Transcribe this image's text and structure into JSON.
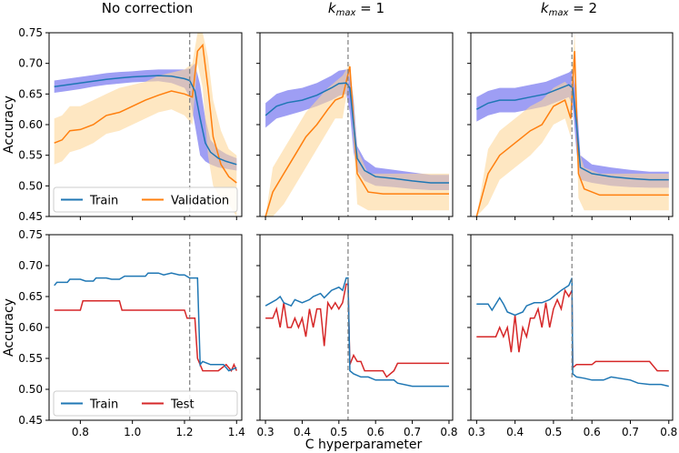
{
  "figure": {
    "xlabel": "C hyperparameter",
    "ylabel": "Accuracy"
  },
  "chart_data": [
    {
      "type": "line",
      "panel": "top-left",
      "title": "No correction",
      "ylabel": "Accuracy",
      "xlim": [
        0.68,
        1.42
      ],
      "ylim": [
        0.45,
        0.75
      ],
      "xticks": [
        "0.8",
        "1.0",
        "1.2",
        "1.4"
      ],
      "show_xticks": false,
      "yticks": [
        "0.45",
        "0.50",
        "0.55",
        "0.60",
        "0.65",
        "0.70",
        "0.75"
      ],
      "vline": 1.22,
      "legend": {
        "position": "lower-left",
        "entries": [
          "Train",
          "Validation"
        ]
      },
      "series": [
        {
          "name": "Train",
          "color": "#1f77b4",
          "band_color": "#7e7ef0",
          "x": [
            0.7,
            0.75,
            0.8,
            0.85,
            0.9,
            0.95,
            1.0,
            1.05,
            1.1,
            1.15,
            1.2,
            1.22,
            1.24,
            1.26,
            1.28,
            1.3,
            1.33,
            1.36,
            1.4
          ],
          "y": [
            0.662,
            0.665,
            0.668,
            0.671,
            0.674,
            0.676,
            0.678,
            0.679,
            0.68,
            0.679,
            0.675,
            0.672,
            0.655,
            0.61,
            0.57,
            0.555,
            0.545,
            0.54,
            0.535
          ],
          "lower": [
            0.652,
            0.655,
            0.658,
            0.662,
            0.665,
            0.667,
            0.669,
            0.67,
            0.671,
            0.668,
            0.66,
            0.645,
            0.6,
            0.55,
            0.54,
            0.535,
            0.53,
            0.528,
            0.525
          ],
          "upper": [
            0.672,
            0.675,
            0.678,
            0.681,
            0.684,
            0.686,
            0.687,
            0.689,
            0.69,
            0.69,
            0.69,
            0.692,
            0.7,
            0.665,
            0.61,
            0.575,
            0.56,
            0.552,
            0.545
          ]
        },
        {
          "name": "Validation",
          "color": "#ff7f0e",
          "band_color": "#fdd79a",
          "x": [
            0.7,
            0.73,
            0.76,
            0.8,
            0.85,
            0.9,
            0.95,
            1.0,
            1.05,
            1.1,
            1.15,
            1.2,
            1.23,
            1.25,
            1.27,
            1.29,
            1.31,
            1.34,
            1.37,
            1.4
          ],
          "y": [
            0.57,
            0.575,
            0.59,
            0.592,
            0.6,
            0.615,
            0.62,
            0.63,
            0.64,
            0.648,
            0.655,
            0.65,
            0.645,
            0.72,
            0.73,
            0.66,
            0.58,
            0.535,
            0.515,
            0.505
          ],
          "lower": [
            0.535,
            0.54,
            0.555,
            0.56,
            0.57,
            0.585,
            0.59,
            0.6,
            0.61,
            0.62,
            0.625,
            0.615,
            0.6,
            0.7,
            0.66,
            0.55,
            0.5,
            0.48,
            0.47,
            0.45
          ],
          "upper": [
            0.61,
            0.615,
            0.63,
            0.63,
            0.64,
            0.65,
            0.66,
            0.665,
            0.67,
            0.68,
            0.685,
            0.69,
            0.7,
            0.75,
            0.75,
            0.71,
            0.64,
            0.59,
            0.56,
            0.55
          ]
        }
      ]
    },
    {
      "type": "line",
      "panel": "top-middle",
      "title_prefix": "k",
      "title_sub": "max",
      "title_suffix": " = 1",
      "xlim": [
        0.285,
        0.81
      ],
      "ylim": [
        0.45,
        0.75
      ],
      "xticks": [
        "0.3",
        "0.4",
        "0.5",
        "0.6",
        "0.7",
        "0.8"
      ],
      "show_xticks": false,
      "vline": 0.525,
      "series": [
        {
          "name": "Train",
          "color": "#1f77b4",
          "band_color": "#7e7ef0",
          "x": [
            0.3,
            0.33,
            0.36,
            0.4,
            0.44,
            0.48,
            0.5,
            0.52,
            0.53,
            0.54,
            0.55,
            0.57,
            0.6,
            0.65,
            0.7,
            0.75,
            0.8
          ],
          "y": [
            0.615,
            0.63,
            0.636,
            0.64,
            0.648,
            0.66,
            0.667,
            0.668,
            0.66,
            0.6,
            0.545,
            0.525,
            0.515,
            0.512,
            0.508,
            0.505,
            0.505
          ],
          "lower": [
            0.595,
            0.61,
            0.615,
            0.622,
            0.63,
            0.64,
            0.647,
            0.65,
            0.62,
            0.555,
            0.525,
            0.508,
            0.5,
            0.498,
            0.495,
            0.493,
            0.493
          ],
          "upper": [
            0.635,
            0.65,
            0.656,
            0.66,
            0.668,
            0.68,
            0.688,
            0.69,
            0.69,
            0.64,
            0.565,
            0.543,
            0.53,
            0.526,
            0.522,
            0.518,
            0.518
          ]
        },
        {
          "name": "Validation",
          "color": "#ff7f0e",
          "band_color": "#fdd79a",
          "x": [
            0.3,
            0.32,
            0.35,
            0.38,
            0.41,
            0.44,
            0.47,
            0.49,
            0.51,
            0.53,
            0.55,
            0.58,
            0.62,
            0.66,
            0.7,
            0.75,
            0.8
          ],
          "y": [
            0.45,
            0.49,
            0.52,
            0.55,
            0.58,
            0.6,
            0.625,
            0.64,
            0.645,
            0.695,
            0.52,
            0.49,
            0.487,
            0.487,
            0.487,
            0.487,
            0.487
          ],
          "lower": [
            0.45,
            0.45,
            0.47,
            0.5,
            0.53,
            0.56,
            0.59,
            0.61,
            0.61,
            0.68,
            0.47,
            0.46,
            0.46,
            0.46,
            0.46,
            0.46,
            0.46
          ],
          "upper": [
            0.45,
            0.53,
            0.56,
            0.59,
            0.62,
            0.64,
            0.66,
            0.67,
            0.68,
            0.7,
            0.56,
            0.52,
            0.52,
            0.52,
            0.52,
            0.52,
            0.52
          ]
        }
      ]
    },
    {
      "type": "line",
      "panel": "top-right",
      "title_prefix": "k",
      "title_sub": "max",
      "title_suffix": " = 2",
      "xlim": [
        0.285,
        0.81
      ],
      "ylim": [
        0.45,
        0.75
      ],
      "xticks": [
        "0.3",
        "0.4",
        "0.5",
        "0.6",
        "0.7",
        "0.8"
      ],
      "show_xticks": false,
      "vline": 0.548,
      "series": [
        {
          "name": "Train",
          "color": "#1f77b4",
          "band_color": "#7e7ef0",
          "x": [
            0.3,
            0.33,
            0.36,
            0.4,
            0.44,
            0.48,
            0.52,
            0.54,
            0.55,
            0.56,
            0.57,
            0.6,
            0.65,
            0.7,
            0.75,
            0.8
          ],
          "y": [
            0.625,
            0.635,
            0.64,
            0.64,
            0.645,
            0.65,
            0.66,
            0.665,
            0.66,
            0.6,
            0.53,
            0.52,
            0.515,
            0.512,
            0.51,
            0.51
          ],
          "lower": [
            0.605,
            0.615,
            0.62,
            0.62,
            0.625,
            0.63,
            0.64,
            0.645,
            0.63,
            0.555,
            0.51,
            0.505,
            0.5,
            0.498,
            0.497,
            0.497
          ],
          "upper": [
            0.645,
            0.655,
            0.66,
            0.66,
            0.665,
            0.67,
            0.68,
            0.685,
            0.69,
            0.645,
            0.55,
            0.535,
            0.53,
            0.526,
            0.523,
            0.523
          ]
        },
        {
          "name": "Validation",
          "color": "#ff7f0e",
          "band_color": "#fdd79a",
          "x": [
            0.3,
            0.33,
            0.36,
            0.4,
            0.44,
            0.47,
            0.5,
            0.53,
            0.545,
            0.555,
            0.565,
            0.58,
            0.62,
            0.66,
            0.7,
            0.75,
            0.8
          ],
          "y": [
            0.45,
            0.52,
            0.55,
            0.57,
            0.59,
            0.6,
            0.63,
            0.64,
            0.61,
            0.72,
            0.52,
            0.495,
            0.485,
            0.485,
            0.485,
            0.485,
            0.485
          ],
          "lower": [
            0.45,
            0.47,
            0.51,
            0.53,
            0.55,
            0.57,
            0.6,
            0.61,
            0.58,
            0.69,
            0.48,
            0.46,
            0.46,
            0.46,
            0.46,
            0.46,
            0.46
          ],
          "upper": [
            0.45,
            0.56,
            0.59,
            0.61,
            0.63,
            0.64,
            0.66,
            0.67,
            0.66,
            0.75,
            0.56,
            0.53,
            0.52,
            0.52,
            0.52,
            0.52,
            0.52
          ]
        }
      ]
    },
    {
      "type": "line",
      "panel": "bottom-left",
      "ylabel": "Accuracy",
      "xlim": [
        0.68,
        1.42
      ],
      "ylim": [
        0.45,
        0.75
      ],
      "xticks": [
        "0.8",
        "1.0",
        "1.2",
        "1.4"
      ],
      "show_xticks": true,
      "yticks": [
        "0.45",
        "0.50",
        "0.55",
        "0.60",
        "0.65",
        "0.70",
        "0.75"
      ],
      "vline": 1.22,
      "legend": {
        "position": "lower-left",
        "entries": [
          "Train",
          "Test"
        ]
      },
      "series": [
        {
          "name": "Train",
          "color": "#1f77b4",
          "x": [
            0.7,
            0.71,
            0.75,
            0.76,
            0.8,
            0.82,
            0.85,
            0.86,
            0.9,
            0.92,
            0.95,
            0.97,
            1.0,
            1.05,
            1.06,
            1.1,
            1.12,
            1.15,
            1.18,
            1.2,
            1.22,
            1.25,
            1.26,
            1.27,
            1.3,
            1.35,
            1.37,
            1.4
          ],
          "y": [
            0.668,
            0.673,
            0.673,
            0.678,
            0.678,
            0.675,
            0.675,
            0.68,
            0.68,
            0.678,
            0.678,
            0.683,
            0.683,
            0.683,
            0.688,
            0.688,
            0.685,
            0.688,
            0.685,
            0.685,
            0.68,
            0.68,
            0.54,
            0.545,
            0.54,
            0.54,
            0.53,
            0.535
          ]
        },
        {
          "name": "Test",
          "color": "#d62728",
          "x": [
            0.7,
            0.8,
            0.81,
            0.95,
            0.96,
            1.2,
            1.21,
            1.24,
            1.25,
            1.27,
            1.3,
            1.33,
            1.36,
            1.38,
            1.39,
            1.4
          ],
          "y": [
            0.628,
            0.628,
            0.643,
            0.643,
            0.628,
            0.628,
            0.615,
            0.615,
            0.55,
            0.53,
            0.53,
            0.53,
            0.54,
            0.53,
            0.54,
            0.53
          ]
        }
      ]
    },
    {
      "type": "line",
      "panel": "bottom-middle",
      "xlim": [
        0.285,
        0.81
      ],
      "ylim": [
        0.45,
        0.75
      ],
      "xticks": [
        "0.3",
        "0.4",
        "0.5",
        "0.6",
        "0.7",
        "0.8"
      ],
      "show_xticks": true,
      "vline": 0.525,
      "series": [
        {
          "name": "Train",
          "color": "#1f77b4",
          "x": [
            0.3,
            0.33,
            0.34,
            0.35,
            0.37,
            0.38,
            0.4,
            0.42,
            0.43,
            0.45,
            0.46,
            0.48,
            0.5,
            0.51,
            0.52,
            0.525,
            0.53,
            0.54,
            0.56,
            0.58,
            0.6,
            0.65,
            0.66,
            0.7,
            0.75,
            0.8
          ],
          "y": [
            0.635,
            0.645,
            0.65,
            0.64,
            0.635,
            0.645,
            0.64,
            0.645,
            0.65,
            0.655,
            0.648,
            0.66,
            0.665,
            0.66,
            0.68,
            0.68,
            0.53,
            0.525,
            0.52,
            0.52,
            0.515,
            0.515,
            0.51,
            0.505,
            0.505,
            0.505
          ]
        },
        {
          "name": "Test",
          "color": "#d62728",
          "x": [
            0.3,
            0.32,
            0.33,
            0.34,
            0.35,
            0.36,
            0.37,
            0.38,
            0.39,
            0.4,
            0.41,
            0.42,
            0.43,
            0.44,
            0.45,
            0.46,
            0.47,
            0.48,
            0.49,
            0.5,
            0.51,
            0.52,
            0.525,
            0.53,
            0.54,
            0.55,
            0.56,
            0.57,
            0.6,
            0.62,
            0.63,
            0.65,
            0.66,
            0.7,
            0.75,
            0.8
          ],
          "y": [
            0.615,
            0.615,
            0.63,
            0.6,
            0.64,
            0.6,
            0.6,
            0.615,
            0.6,
            0.615,
            0.585,
            0.63,
            0.6,
            0.63,
            0.63,
            0.57,
            0.64,
            0.63,
            0.64,
            0.63,
            0.64,
            0.67,
            0.67,
            0.54,
            0.555,
            0.545,
            0.545,
            0.53,
            0.53,
            0.53,
            0.52,
            0.53,
            0.542,
            0.542,
            0.542,
            0.542
          ]
        }
      ]
    },
    {
      "type": "line",
      "panel": "bottom-right",
      "xlim": [
        0.285,
        0.81
      ],
      "ylim": [
        0.45,
        0.75
      ],
      "xticks": [
        "0.3",
        "0.4",
        "0.5",
        "0.6",
        "0.7",
        "0.8"
      ],
      "show_xticks": true,
      "vline": 0.548,
      "series": [
        {
          "name": "Train",
          "color": "#1f77b4",
          "x": [
            0.3,
            0.33,
            0.34,
            0.36,
            0.37,
            0.38,
            0.4,
            0.42,
            0.43,
            0.45,
            0.47,
            0.49,
            0.5,
            0.52,
            0.54,
            0.548,
            0.55,
            0.56,
            0.58,
            0.6,
            0.63,
            0.65,
            0.7,
            0.72,
            0.75,
            0.78,
            0.8
          ],
          "y": [
            0.638,
            0.638,
            0.628,
            0.648,
            0.638,
            0.625,
            0.62,
            0.625,
            0.635,
            0.64,
            0.64,
            0.645,
            0.65,
            0.66,
            0.668,
            0.68,
            0.525,
            0.52,
            0.518,
            0.515,
            0.515,
            0.52,
            0.515,
            0.51,
            0.508,
            0.508,
            0.505
          ]
        },
        {
          "name": "Test",
          "color": "#d62728",
          "x": [
            0.3,
            0.35,
            0.36,
            0.37,
            0.38,
            0.39,
            0.4,
            0.41,
            0.42,
            0.43,
            0.44,
            0.45,
            0.46,
            0.47,
            0.48,
            0.49,
            0.5,
            0.51,
            0.52,
            0.53,
            0.54,
            0.548,
            0.55,
            0.56,
            0.58,
            0.6,
            0.61,
            0.65,
            0.7,
            0.75,
            0.77,
            0.79,
            0.8
          ],
          "y": [
            0.585,
            0.585,
            0.6,
            0.585,
            0.6,
            0.56,
            0.62,
            0.56,
            0.6,
            0.585,
            0.615,
            0.615,
            0.63,
            0.6,
            0.64,
            0.6,
            0.63,
            0.645,
            0.63,
            0.66,
            0.65,
            0.66,
            0.535,
            0.54,
            0.54,
            0.54,
            0.545,
            0.545,
            0.545,
            0.545,
            0.53,
            0.53,
            0.53
          ]
        }
      ]
    }
  ]
}
